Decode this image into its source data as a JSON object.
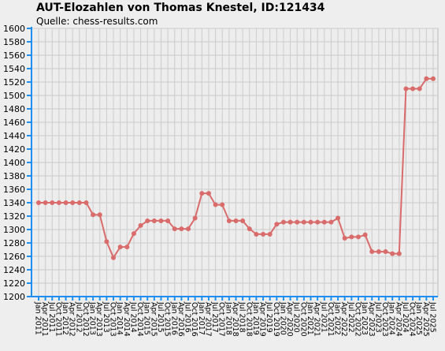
{
  "header": {
    "title": "AUT-Elozahlen von Thomas Knestel, ID:121434",
    "subtitle": "Quelle: chess-results.com"
  },
  "colors": {
    "line": "#d96b6b",
    "axis": "#1e8ff0",
    "grid": "#cccccc",
    "background": "#eeeeee"
  },
  "chart_data": {
    "type": "line",
    "title": "AUT-Elozahlen von Thomas Knestel, ID:121434",
    "subtitle": "Quelle: chess-results.com",
    "ylim": [
      1200,
      1600
    ],
    "ytick_step": 20,
    "grid": true,
    "tick_labels": [
      "Jan 2011",
      "Apr 2011",
      "Jul 2011",
      "Oct 2011",
      "Jan 2012",
      "Apr 2012",
      "Jul 2012",
      "Oct 2012",
      "Jan 2013",
      "Apr 2013",
      "Jul 2013",
      "Oct 2013",
      "Jan 2014",
      "Apr 2014",
      "Jul 2014",
      "Oct 2014",
      "Jan 2015",
      "Apr 2015",
      "Jul 2015",
      "Oct 2015",
      "Jan 2016",
      "Apr 2016",
      "Jul 2016",
      "Oct 2016",
      "Jan 2017",
      "Apr 2017",
      "Jul 2017",
      "Oct 2017",
      "Jan 2018",
      "Apr 2018",
      "Jul 2018",
      "Oct 2018",
      "Jan 2019",
      "Apr 2019",
      "Jul 2019",
      "Oct 2019",
      "Jan 2020",
      "Apr 2020",
      "Jul 2020",
      "Oct 2020",
      "Jan 2021",
      "Apr 2021",
      "Jul 2021",
      "Oct 2021",
      "Jan 2022",
      "Apr 2022",
      "Jul 2022",
      "Oct 2022",
      "Jan 2023",
      "Apr 2023",
      "Jul 2023",
      "Oct 2023",
      "Jan 2024",
      "Apr 2024",
      "Jul 2024",
      "Oct 2024",
      "Jan 2025",
      "Apr 2025",
      "Jul 2025"
    ],
    "series": [
      {
        "values": [
          1340,
          1340,
          1340,
          1340,
          1340,
          1340,
          1340,
          1340,
          1322,
          1322,
          1282,
          1258,
          1274,
          1274,
          1294,
          1306,
          1313,
          1313,
          1313,
          1313,
          1301,
          1301,
          1301,
          1317,
          1354,
          1354,
          1337,
          1337,
          1313,
          1313,
          1313,
          1301,
          1293,
          1293,
          1293,
          1308,
          1311,
          1311,
          1311,
          1311,
          1311,
          1311,
          1311,
          1311,
          1317,
          1287,
          1289,
          1289,
          1292,
          1267,
          1267,
          1267,
          1264,
          1264,
          1510,
          1510,
          1510,
          1525,
          1525
        ]
      }
    ]
  }
}
